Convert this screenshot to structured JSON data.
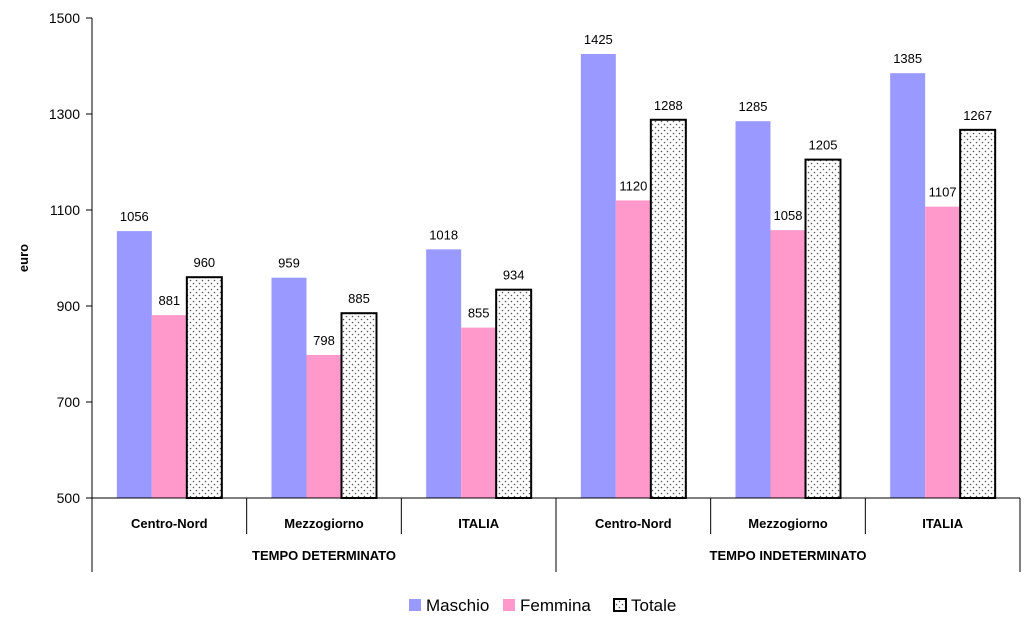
{
  "chart_data": {
    "type": "bar",
    "groups": [
      {
        "label": "TEMPO DETERMINATO",
        "categories": [
          "Centro-Nord",
          "Mezzogiorno",
          "ITALIA"
        ]
      },
      {
        "label": "TEMPO INDETERMINATO",
        "categories": [
          "Centro-Nord",
          "Mezzogiorno",
          "ITALIA"
        ]
      }
    ],
    "series": [
      {
        "name": "Maschio",
        "color": "#9999FF",
        "values": [
          1056,
          959,
          1018,
          1425,
          1285,
          1385
        ]
      },
      {
        "name": "Femmina",
        "color": "#FF99CC",
        "values": [
          881,
          798,
          855,
          1120,
          1058,
          1107
        ]
      },
      {
        "name": "Totale",
        "color": "#FFFFFF",
        "pattern": "dotted",
        "values": [
          960,
          885,
          934,
          1288,
          1205,
          1267
        ]
      }
    ],
    "ylabel": "euro",
    "ylim": [
      500,
      1500
    ],
    "yticks": [
      500,
      700,
      900,
      1100,
      1300,
      1500
    ],
    "grid": false,
    "legend_position": "bottom-center"
  }
}
